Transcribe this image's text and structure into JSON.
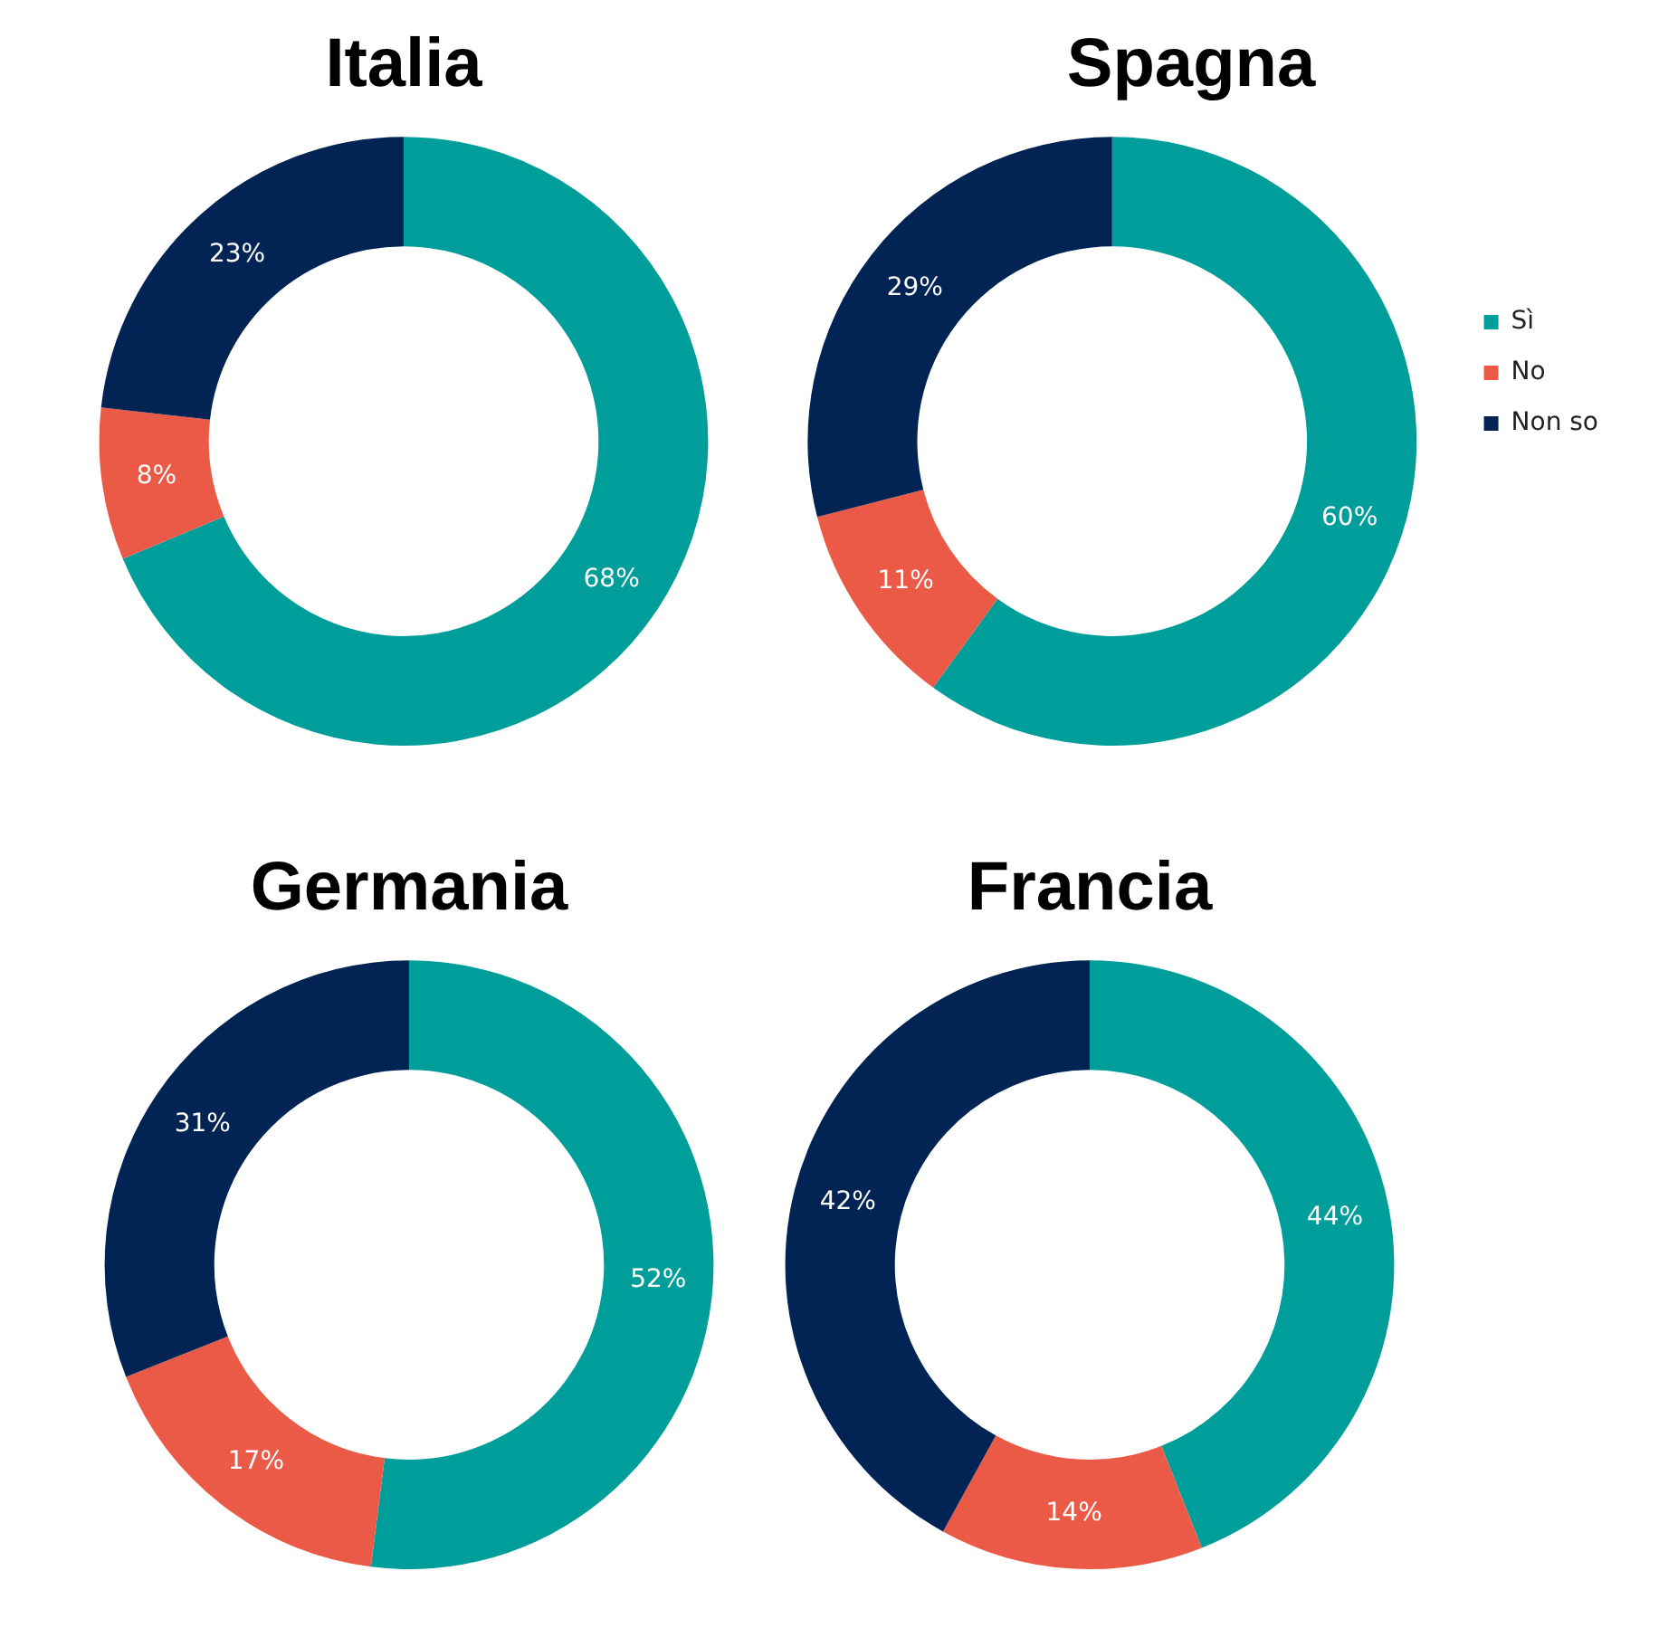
{
  "chart_data": [
    {
      "type": "donut",
      "title": "Italia",
      "categories": [
        null,
        null,
        null
      ],
      "values": [
        68,
        8,
        23
      ],
      "value_labels": [
        "68%",
        "8%",
        "23%"
      ],
      "colors": [
        "#009e9a",
        "#ea5a47",
        "#022454"
      ],
      "legend": false
    },
    {
      "type": "donut",
      "title": "Spagna",
      "categories": [
        "Sì",
        "No",
        "Non so"
      ],
      "values": [
        60,
        11,
        29
      ],
      "value_labels": [
        "60%",
        "11%",
        "29%"
      ],
      "colors": [
        "#009e9a",
        "#ea5a47",
        "#022454"
      ],
      "legend": "right"
    },
    {
      "type": "donut",
      "title": "Germania",
      "categories": [
        null,
        null,
        null
      ],
      "values": [
        52,
        17,
        31
      ],
      "value_labels": [
        "52%",
        "17%",
        "31%"
      ],
      "colors": [
        "#009e9a",
        "#ea5a47",
        "#022454"
      ],
      "legend": false
    },
    {
      "type": "donut",
      "title": "Francia",
      "categories": [
        null,
        null,
        null
      ],
      "values": [
        44,
        14,
        42
      ],
      "value_labels": [
        "44%",
        "14%",
        "42%"
      ],
      "colors": [
        "#009e9a",
        "#ea5a47",
        "#022454"
      ],
      "legend": false
    }
  ]
}
